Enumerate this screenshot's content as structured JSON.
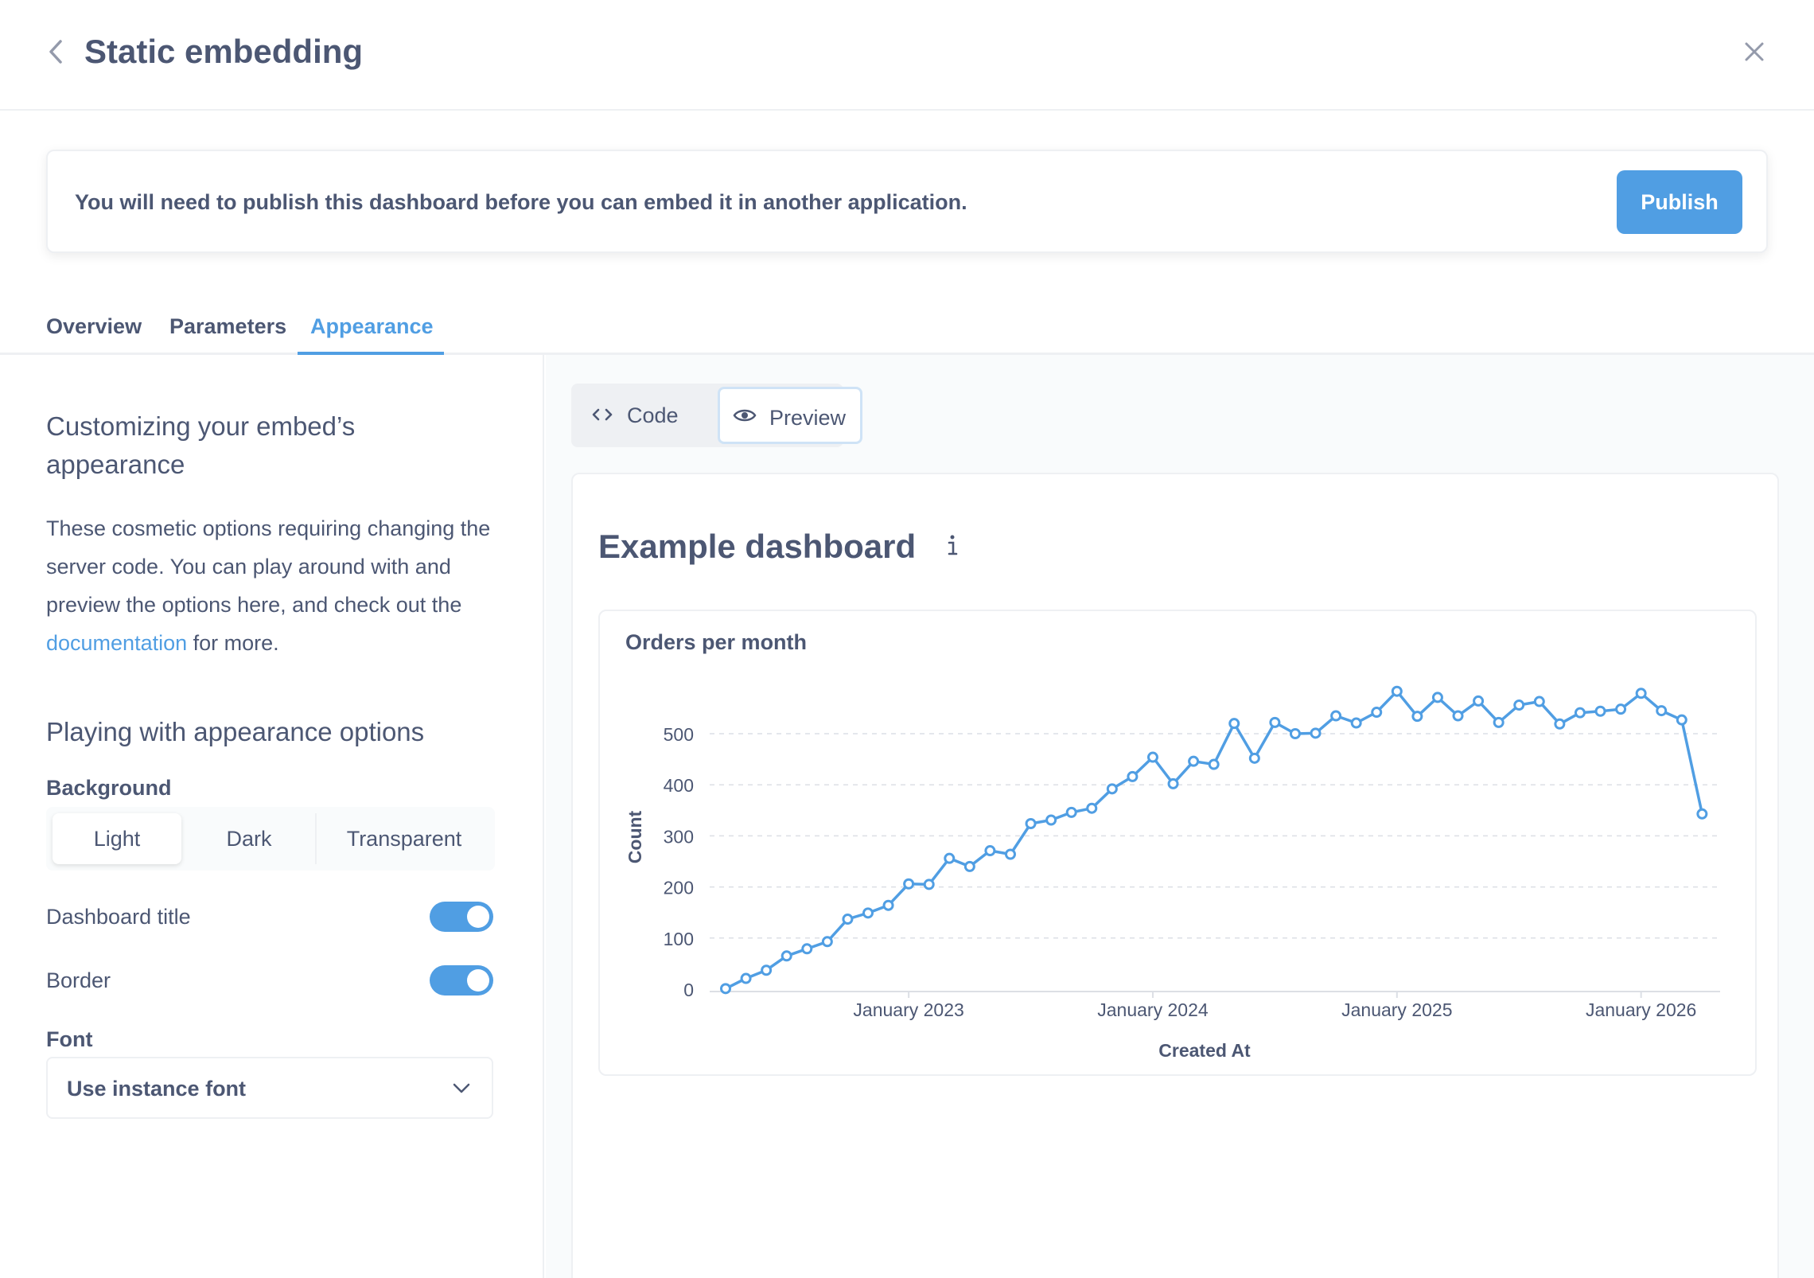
{
  "header": {
    "title": "Static embedding",
    "back_icon": "chevron-left-icon",
    "close_icon": "close-icon"
  },
  "notice": {
    "text": "You will need to publish this dashboard before you can embed it in another application.",
    "publish_label": "Publish"
  },
  "tabs": [
    {
      "label": "Overview",
      "active": false
    },
    {
      "label": "Parameters",
      "active": false
    },
    {
      "label": "Appearance",
      "active": true
    }
  ],
  "left": {
    "heading": "Customizing your embed’s appearance",
    "description_prefix": "These cosmetic options requiring changing the server code. You can play around with and preview the options here, and check out the ",
    "description_link": "documentation",
    "description_suffix": " for more.",
    "options_heading": "Playing with appearance options",
    "background_label": "Background",
    "background_options": [
      "Light",
      "Dark",
      "Transparent"
    ],
    "background_selected": "Light",
    "dashboard_title_label": "Dashboard title",
    "dashboard_title_on": true,
    "border_label": "Border",
    "border_on": true,
    "font_label": "Font",
    "font_value": "Use instance font"
  },
  "preview": {
    "mode_code": "Code",
    "mode_preview": "Preview",
    "mode_selected": "Preview",
    "dashboard_title": "Example dashboard"
  },
  "colors": {
    "accent": "#509ee3",
    "text": "#4c5773",
    "border": "#eef0f3"
  },
  "chart_data": {
    "type": "line",
    "title": "Orders per month",
    "xlabel": "Created At",
    "ylabel": "Count",
    "ylim": [
      0,
      550
    ],
    "yticks": [
      0,
      100,
      200,
      300,
      400,
      500
    ],
    "xtick_labels": [
      "January 2023",
      "January 2024",
      "January 2025",
      "January 2026"
    ],
    "grid": true,
    "series": [
      {
        "values": [
          1,
          21,
          37,
          65,
          79,
          93,
          137,
          149,
          164,
          206,
          205,
          256,
          240,
          271,
          264,
          324,
          331,
          346,
          354,
          392,
          416,
          454,
          402,
          446,
          440,
          520,
          452,
          522,
          500,
          501,
          535,
          521,
          542,
          583,
          534,
          571,
          535,
          564,
          522,
          556,
          563,
          519,
          541,
          544,
          548,
          579,
          545,
          527,
          343
        ]
      }
    ]
  }
}
